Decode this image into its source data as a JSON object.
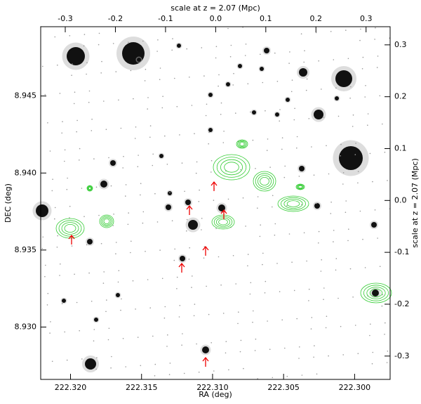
{
  "chart_data": {
    "type": "image",
    "xlabel": "RA (deg)",
    "ylabel": "DEC (deg)",
    "x2label": "scale at z = 2.07 (Mpc)",
    "y2label": "scale at z = 2.07 (Mpc)",
    "xlim": [
      222.3221,
      222.2975
    ],
    "xticks": [
      {
        "value": 222.32,
        "label": "222.320"
      },
      222.315,
      {
        "value": 222.31,
        "label": "222.310"
      },
      222.305,
      {
        "value": 222.3,
        "label": "222.300"
      }
    ],
    "ylim": [
      8.9266,
      8.9495
    ],
    "yticks": [
      {
        "value": 8.93,
        "label": "8.930"
      },
      8.935,
      {
        "value": 8.94,
        "label": "8.940"
      },
      8.945
    ],
    "x2lim": [
      -0.349,
      0.348
    ],
    "x2ticks": [
      -0.3,
      -0.2,
      -0.1,
      {
        "value": 0,
        "label": "0.0"
      },
      0.1,
      0.2,
      0.3
    ],
    "y2lim": [
      -0.345,
      0.335
    ],
    "y2ticks": [
      -0.3,
      -0.2,
      -0.1,
      {
        "value": 0,
        "label": "0.0"
      },
      0.1,
      0.2,
      0.3
    ]
  }
}
